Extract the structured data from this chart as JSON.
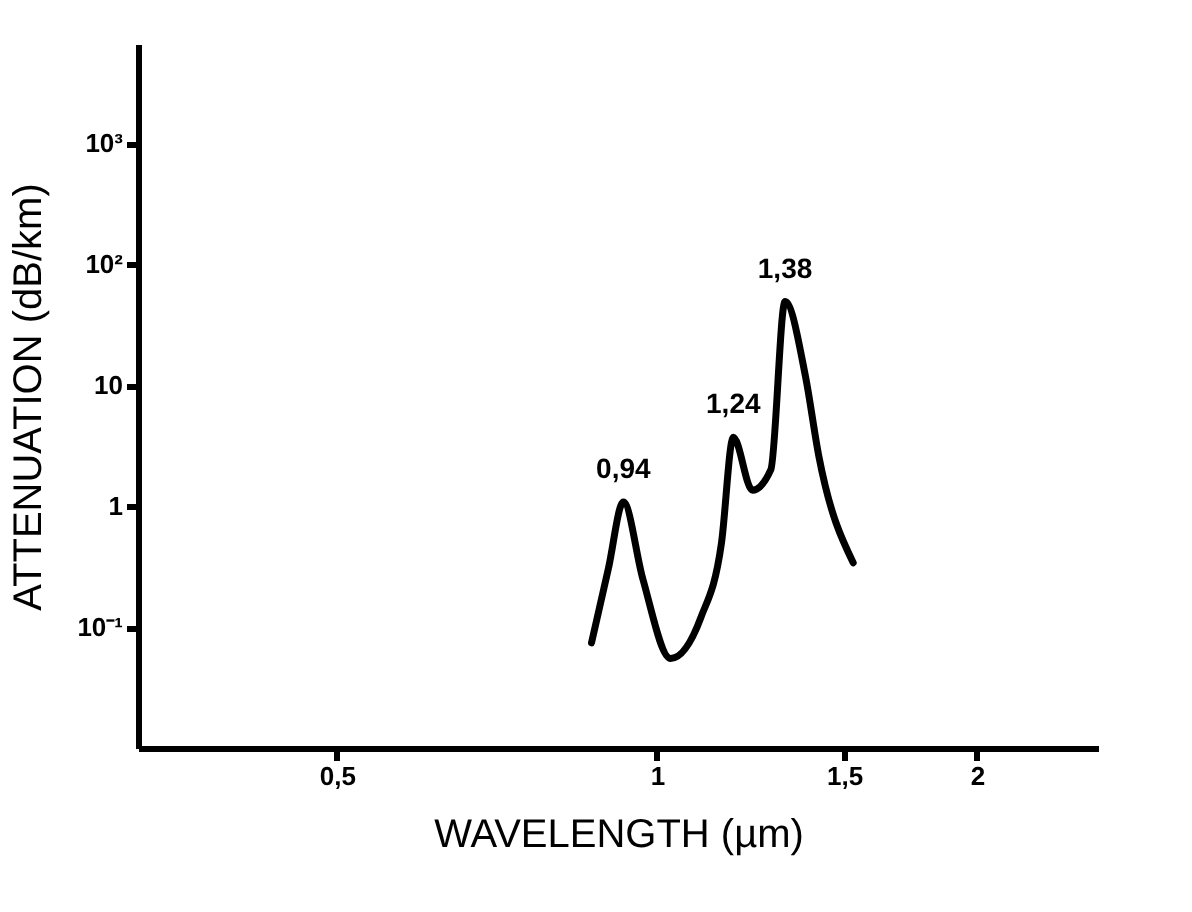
{
  "chart_data": {
    "type": "line",
    "xlabel": "WAVELENGTH (µm)",
    "ylabel": "ATTENUATION (dB/km)",
    "log": "xy",
    "grid": false,
    "x": [
      0.868,
      0.9,
      0.93,
      0.97,
      1.03,
      1.1,
      1.15,
      1.18,
      1.23,
      1.28,
      1.32,
      1.38,
      1.42,
      1.53
    ],
    "series": [
      {
        "color": "#000000",
        "values": [
          0.074,
          0.3,
          1.08,
          0.25,
          0.055,
          0.12,
          0.49,
          3.7,
          1.35,
          2.0,
          49,
          11.7,
          2.6,
          0.34
        ]
      }
    ],
    "xlim": [
      0.325,
      2.6
    ],
    "ylim": [
      0.01,
      6600
    ],
    "xticks": [
      {
        "value": 0.5,
        "label": "0,5"
      },
      1,
      {
        "value": 1.5,
        "label": "1,5"
      },
      2
    ],
    "yticks": [
      {
        "value": 0.1,
        "label": "10⁻¹"
      },
      1,
      10,
      {
        "value": 100,
        "label": "10²"
      },
      {
        "value": 1000,
        "label": "10³"
      }
    ],
    "annotations": [
      {
        "text": "0,94",
        "x": 0.93,
        "y": 1.08
      },
      {
        "text": "1,24",
        "x": 1.18,
        "y": 3.7
      },
      {
        "text": "1,38",
        "x": 1.32,
        "y": 49
      }
    ]
  }
}
